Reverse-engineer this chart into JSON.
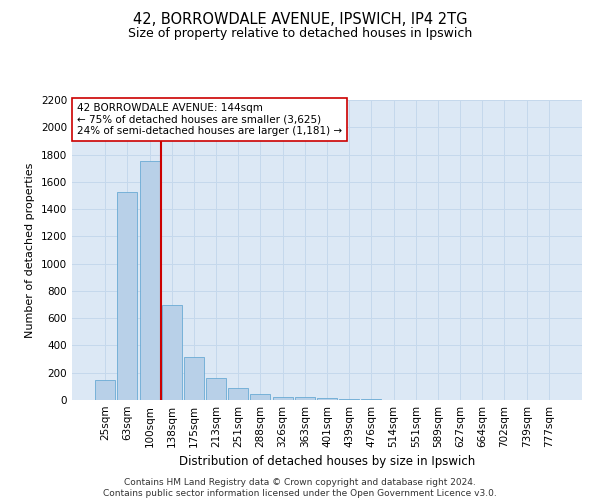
{
  "title_line1": "42, BORROWDALE AVENUE, IPSWICH, IP4 2TG",
  "title_line2": "Size of property relative to detached houses in Ipswich",
  "xlabel": "Distribution of detached houses by size in Ipswich",
  "ylabel": "Number of detached properties",
  "categories": [
    "25sqm",
    "63sqm",
    "100sqm",
    "138sqm",
    "175sqm",
    "213sqm",
    "251sqm",
    "288sqm",
    "326sqm",
    "363sqm",
    "401sqm",
    "439sqm",
    "476sqm",
    "514sqm",
    "551sqm",
    "589sqm",
    "627sqm",
    "664sqm",
    "702sqm",
    "739sqm",
    "777sqm"
  ],
  "values": [
    150,
    1525,
    1750,
    700,
    315,
    160,
    85,
    45,
    25,
    20,
    15,
    10,
    5,
    2,
    1,
    1,
    0,
    0,
    0,
    0,
    0
  ],
  "bar_color": "#b8d0e8",
  "bar_edgecolor": "#6aaad4",
  "vline_color": "#cc0000",
  "vline_x_index": 3,
  "annotation_text": "42 BORROWDALE AVENUE: 144sqm\n← 75% of detached houses are smaller (3,625)\n24% of semi-detached houses are larger (1,181) →",
  "annotation_box_facecolor": "#ffffff",
  "annotation_box_edgecolor": "#cc0000",
  "ylim": [
    0,
    2200
  ],
  "yticks": [
    0,
    200,
    400,
    600,
    800,
    1000,
    1200,
    1400,
    1600,
    1800,
    2000,
    2200
  ],
  "grid_color": "#c5d8ec",
  "background_color": "#dce8f5",
  "footer_text": "Contains HM Land Registry data © Crown copyright and database right 2024.\nContains public sector information licensed under the Open Government Licence v3.0.",
  "figsize": [
    6.0,
    5.0
  ],
  "dpi": 100,
  "title1_fontsize": 10.5,
  "title2_fontsize": 9,
  "xlabel_fontsize": 8.5,
  "ylabel_fontsize": 8,
  "tick_fontsize": 7.5,
  "annotation_fontsize": 7.5,
  "footer_fontsize": 6.5
}
